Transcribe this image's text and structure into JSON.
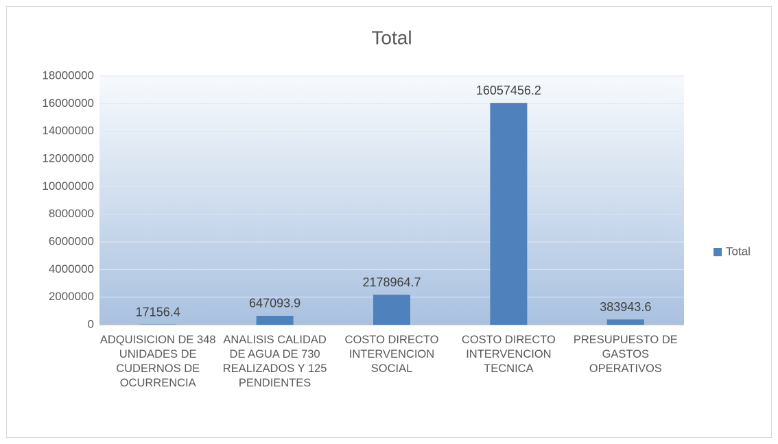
{
  "chart_data": {
    "type": "bar",
    "title": "Total",
    "categories": [
      "ADQUISICION DE 348 UNIDADES DE CUDERNOS DE OCURRENCIA",
      "ANALISIS CALIDAD DE AGUA DE 730 REALIZADOS Y 125 PENDIENTES",
      "COSTO DIRECTO INTERVENCION SOCIAL",
      "COSTO DIRECTO INTERVENCION TECNICA",
      "PRESUPUESTO DE GASTOS OPERATIVOS"
    ],
    "series": [
      {
        "name": "Total",
        "color": "#4f81bd",
        "values": [
          17156.4,
          647093.9,
          2178964.7,
          16057456.2,
          383943.6
        ]
      }
    ],
    "ylim": [
      0,
      18000000
    ],
    "yticks": [
      0,
      2000000,
      4000000,
      6000000,
      8000000,
      10000000,
      12000000,
      14000000,
      16000000,
      18000000
    ],
    "grid": true,
    "legend": "right"
  }
}
